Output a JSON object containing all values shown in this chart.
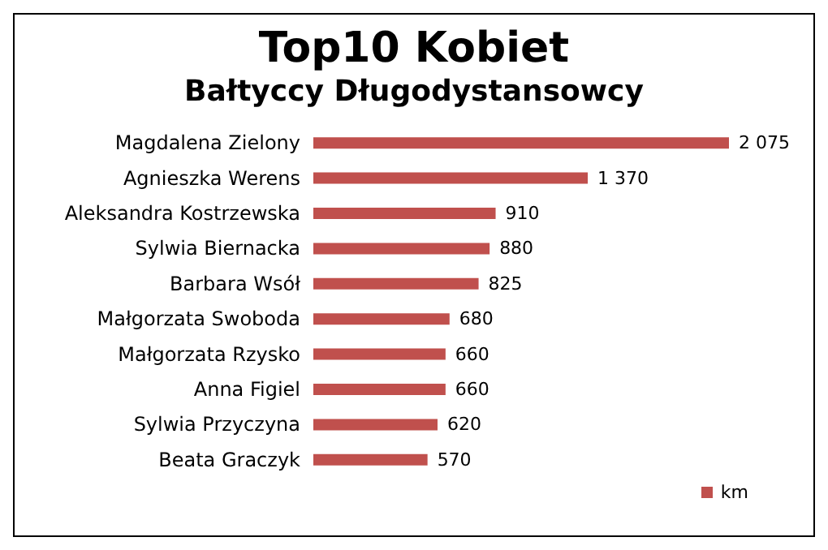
{
  "chart_data": {
    "type": "bar",
    "orientation": "horizontal",
    "title": "Top10 Kobiet",
    "subtitle": "Bałtyccy Długodystansowcy",
    "categories": [
      "Magdalena Zielony",
      "Agnieszka Werens",
      "Aleksandra Kostrzewska",
      "Sylwia Biernacka",
      "Barbara Wsół",
      "Małgorzata Swoboda",
      "Małgorzata Rzysko",
      "Anna Figiel",
      "Sylwia Przyczyna",
      "Beata Graczyk"
    ],
    "series": [
      {
        "name": "km",
        "color": "#c0504d",
        "values": [
          2075,
          1370,
          910,
          880,
          825,
          680,
          660,
          660,
          620,
          570
        ],
        "value_labels": [
          "2 075",
          "1 370",
          "910",
          "880",
          "825",
          "680",
          "660",
          "660",
          "620",
          "570"
        ]
      }
    ],
    "legend": "bottom right",
    "grid": false
  }
}
